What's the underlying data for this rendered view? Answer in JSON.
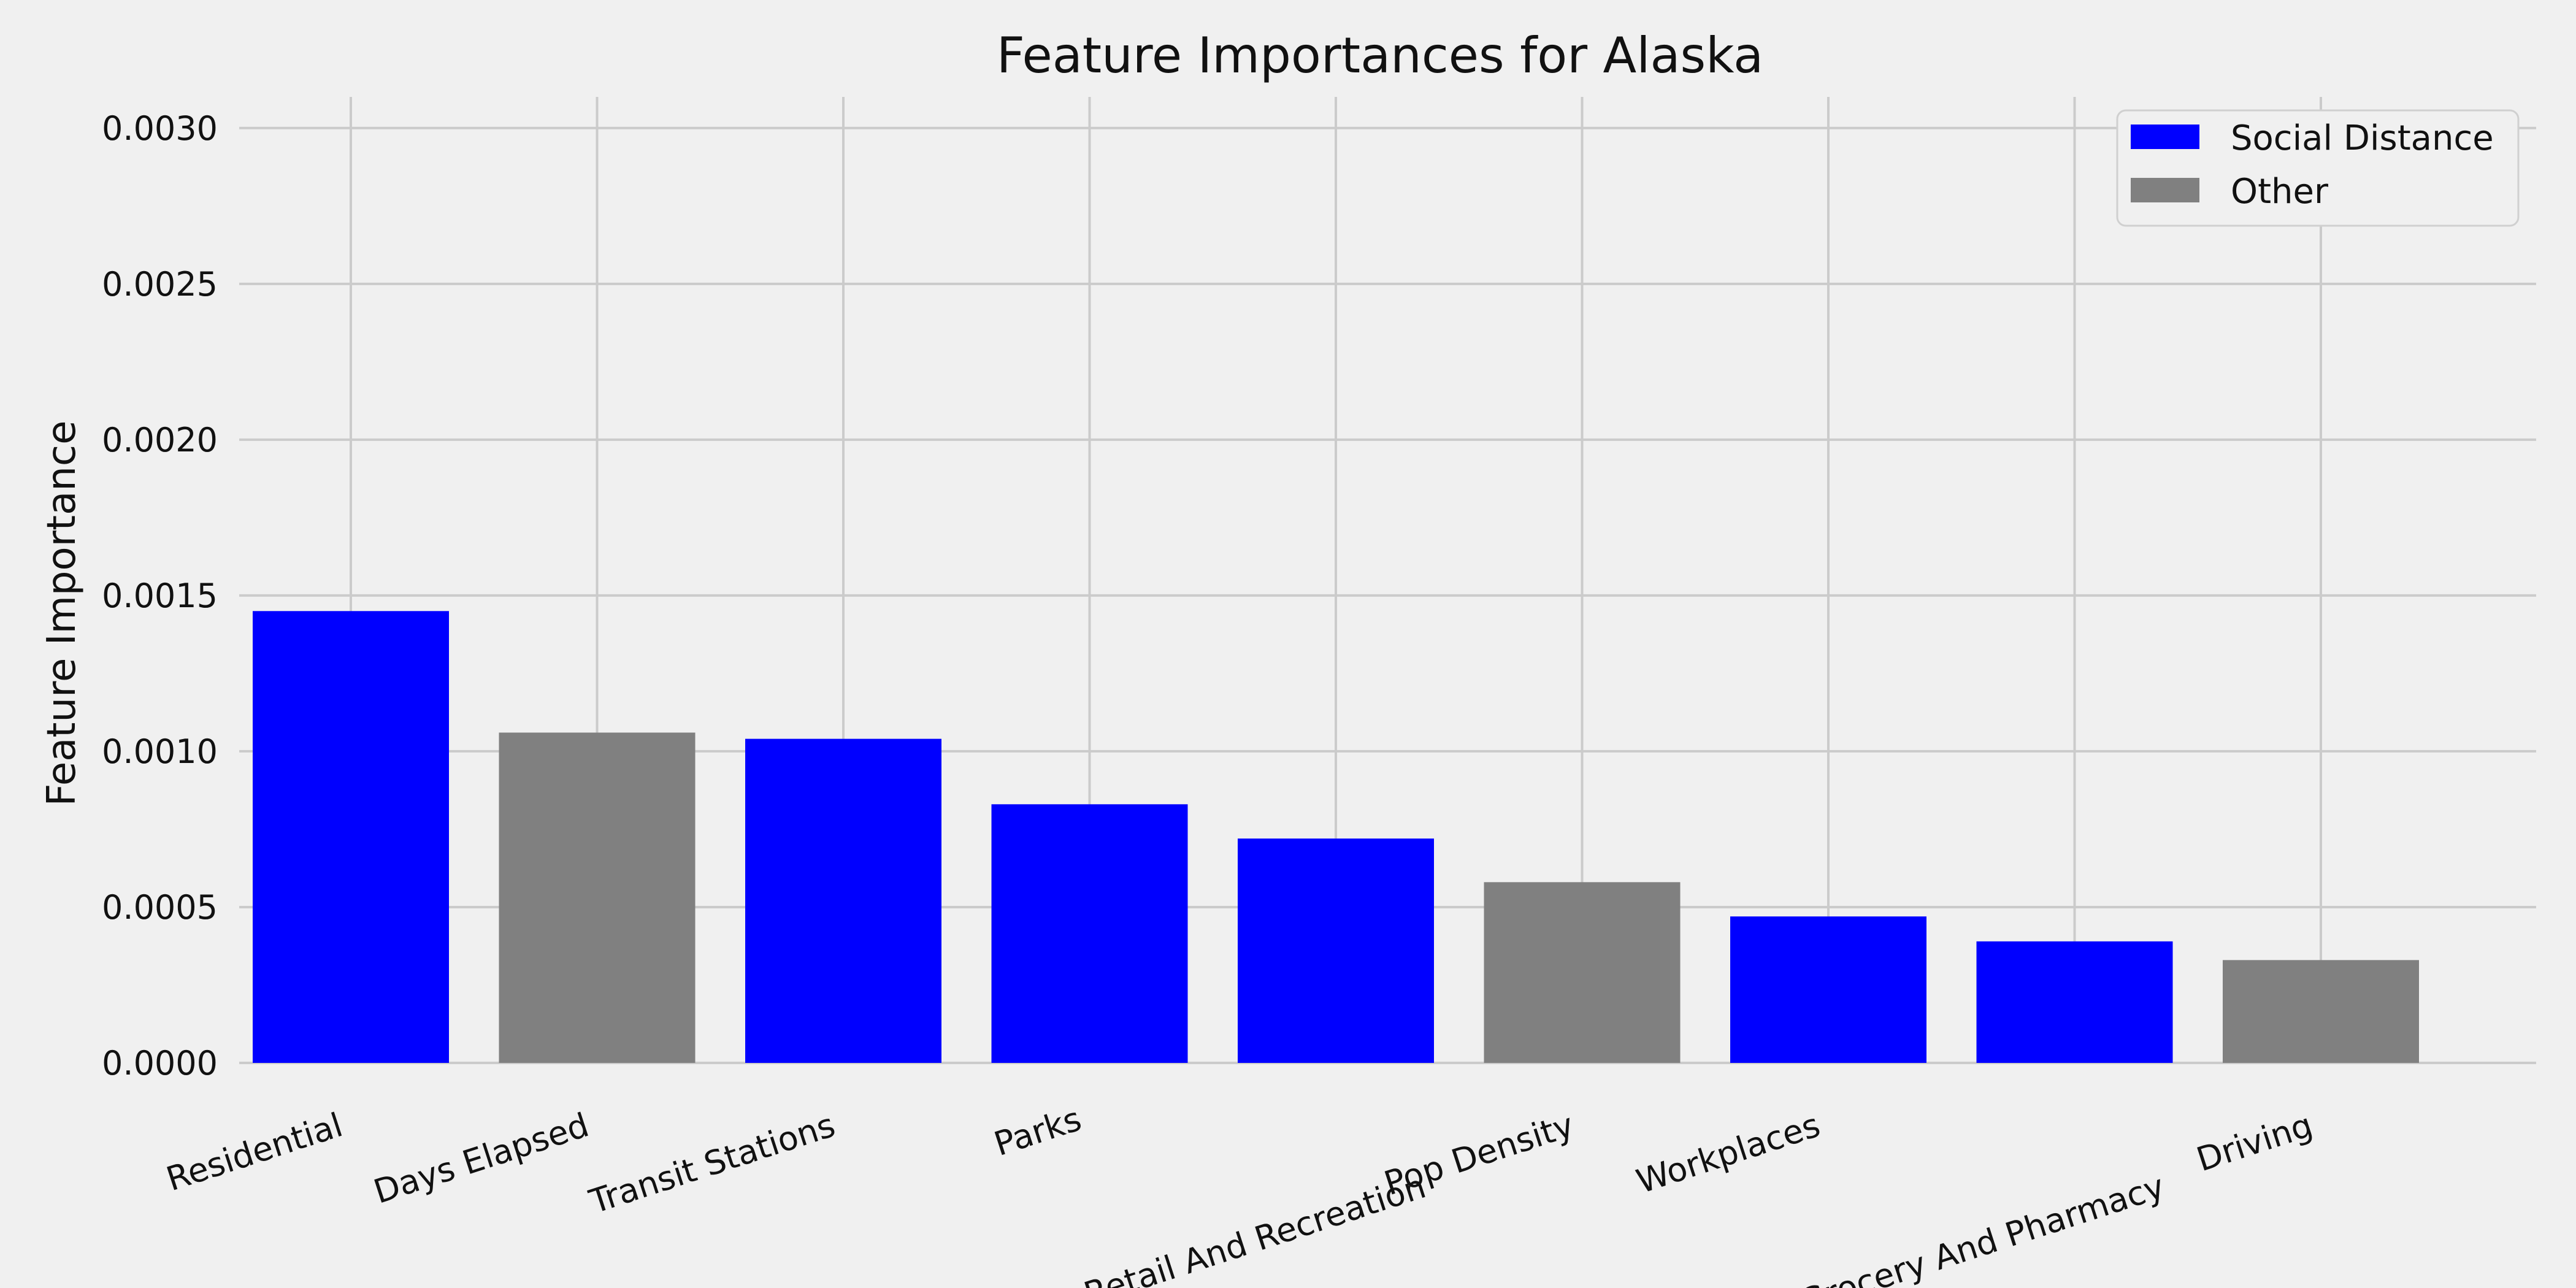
{
  "chart_data": {
    "type": "bar",
    "title": "Feature Importances for Alaska",
    "xlabel": "",
    "ylabel": "Feature Importance",
    "ylim": [
      0,
      0.0031
    ],
    "yticks": [
      "0.0000",
      "0.0005",
      "0.0010",
      "0.0015",
      "0.0020",
      "0.0025",
      "0.0030"
    ],
    "categories": [
      "Residential",
      "Days Elapsed",
      "Transit Stations",
      "Parks",
      "Retail And Recreation",
      "Pop Density",
      "Workplaces",
      "Grocery And Pharmacy",
      "Driving"
    ],
    "values": [
      0.00145,
      0.00106,
      0.00104,
      0.00083,
      0.00072,
      0.00058,
      0.00047,
      0.00039,
      0.00033
    ],
    "groups": [
      "Social Distance",
      "Other",
      "Social Distance",
      "Social Distance",
      "Social Distance",
      "Other",
      "Social Distance",
      "Social Distance",
      "Other"
    ],
    "grid": true,
    "legend": {
      "placement": "top-right",
      "entries": [
        {
          "label": "Social Distance",
          "color": "#0000ff"
        },
        {
          "label": "Other",
          "color": "#808080"
        }
      ]
    }
  }
}
